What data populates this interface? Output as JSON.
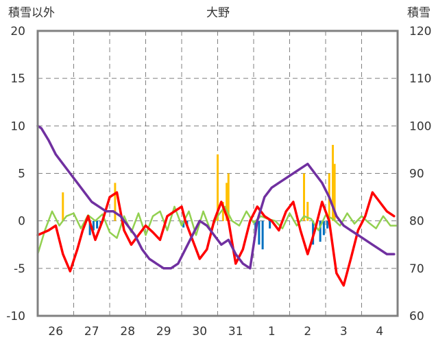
{
  "chart_data": {
    "type": "line",
    "title": "大野",
    "left_axis_label": "積雪以外",
    "right_axis_label": "積雪",
    "ylim_left": [
      -10,
      20
    ],
    "ylim_right": [
      60,
      120
    ],
    "yticks_left": [
      "-10",
      "-5",
      "0",
      "5",
      "10",
      "15",
      "20"
    ],
    "yticks_right": [
      "60",
      "70",
      "80",
      "90",
      "100",
      "110",
      "120"
    ],
    "x_range": [
      0,
      10
    ],
    "categories": [
      "26",
      "27",
      "28",
      "29",
      "30",
      "31",
      "1",
      "2",
      "3",
      "4"
    ],
    "grid": true,
    "colors": {
      "temperature": "#ff0000",
      "snow_depth": "#7030a0",
      "wind": "#92d050",
      "precip_pos": "#ffc000",
      "precip_neg": "#0070c0",
      "frame": "#808080"
    },
    "series": [
      {
        "axis": "left",
        "color": "#ff0000",
        "x": [
          0,
          0.3,
          0.5,
          0.7,
          0.9,
          1.1,
          1.25,
          1.4,
          1.6,
          1.8,
          2.0,
          2.2,
          2.4,
          2.6,
          2.8,
          3.0,
          3.2,
          3.4,
          3.6,
          3.8,
          4.0,
          4.1,
          4.3,
          4.5,
          4.7,
          4.9,
          5.1,
          5.3,
          5.5,
          5.7,
          5.9,
          6.1,
          6.3,
          6.5,
          6.7,
          6.9,
          7.1,
          7.3,
          7.5,
          7.7,
          7.9,
          8.1,
          8.3,
          8.5,
          8.7,
          8.9,
          9.1,
          9.3,
          9.5,
          9.7,
          9.9
        ],
        "y": [
          -1.5,
          -1,
          -0.5,
          -3.5,
          -5.3,
          -3,
          -1,
          0.5,
          -2,
          0,
          2.5,
          3,
          -1,
          -2.5,
          -1.5,
          -0.5,
          -1.2,
          -2,
          0.5,
          1,
          1.5,
          0,
          -2,
          -4,
          -3,
          0,
          2,
          0,
          -4.5,
          -3,
          0,
          1.5,
          0.5,
          0,
          -1,
          1,
          2,
          -1,
          -3.5,
          -1,
          2,
          0,
          -5.5,
          -6.8,
          -4,
          -1,
          0.5,
          3,
          2,
          1,
          0.5
        ]
      },
      {
        "axis": "right",
        "color": "#7030a0",
        "x": [
          0,
          0.1,
          0.3,
          0.5,
          0.7,
          0.9,
          1.1,
          1.3,
          1.5,
          1.7,
          1.9,
          2.1,
          2.3,
          2.5,
          2.7,
          2.9,
          3.1,
          3.3,
          3.5,
          3.7,
          3.9,
          4.1,
          4.3,
          4.5,
          4.7,
          4.9,
          5.1,
          5.3,
          5.5,
          5.7,
          5.9,
          6.1,
          6.3,
          6.5,
          6.7,
          6.9,
          7.1,
          7.3,
          7.5,
          7.7,
          7.9,
          8.1,
          8.3,
          8.5,
          8.7,
          8.9,
          9.1,
          9.3,
          9.5,
          9.7,
          9.9
        ],
        "y": [
          100,
          99.5,
          97,
          94,
          92,
          90,
          88,
          86,
          84,
          83,
          82,
          82,
          81,
          79,
          77,
          74,
          72,
          71,
          70,
          70,
          71,
          74,
          77,
          80,
          79,
          77,
          75,
          76,
          73,
          71,
          70,
          80,
          85,
          87,
          88,
          89,
          90,
          91,
          92,
          90,
          88,
          85,
          81,
          79,
          78,
          77,
          76,
          75,
          74,
          73,
          73
        ]
      },
      {
        "axis": "left",
        "color": "#92d050",
        "x": [
          0,
          0.2,
          0.4,
          0.6,
          0.8,
          1.0,
          1.2,
          1.4,
          1.6,
          1.8,
          2.0,
          2.2,
          2.4,
          2.6,
          2.8,
          3.0,
          3.2,
          3.4,
          3.6,
          3.8,
          4.0,
          4.2,
          4.4,
          4.6,
          4.8,
          5.0,
          5.2,
          5.4,
          5.6,
          5.8,
          6.0,
          6.2,
          6.4,
          6.6,
          6.8,
          7.0,
          7.2,
          7.4,
          7.6,
          7.8,
          8.0,
          8.2,
          8.4,
          8.6,
          8.8,
          9.0,
          9.2,
          9.4,
          9.6,
          9.8,
          10.0
        ],
        "y": [
          -3.5,
          -1,
          1,
          -0.5,
          0.5,
          0.8,
          -0.8,
          0.6,
          0,
          0.7,
          -1.2,
          -1.8,
          0.5,
          -1.2,
          0.8,
          -1.5,
          0.5,
          1,
          -1,
          1.5,
          -0.5,
          1,
          -1.5,
          1,
          -1,
          0.5,
          1.5,
          0,
          -0.5,
          1,
          -0.2,
          0.5,
          0.2,
          0,
          -0.8,
          0.8,
          -0.5,
          0.5,
          0.2,
          -1,
          0.6,
          0.2,
          -0.5,
          0.8,
          -0.3,
          0.5,
          -0.2,
          -0.8,
          0.5,
          -0.5,
          -0.5
        ]
      },
      {
        "axis": "left",
        "type": "bar",
        "color": "#ffc000",
        "x": [
          0.7,
          2.15,
          5.0,
          5.15,
          5.25,
          5.3,
          7.4,
          7.5,
          8.1,
          8.2,
          8.25
        ],
        "values": [
          3,
          4,
          7,
          2,
          4,
          5,
          5,
          2,
          5,
          8,
          6
        ]
      },
      {
        "axis": "left",
        "type": "bar",
        "color": "#0070c0",
        "x": [
          1.45,
          1.55,
          1.65,
          1.75,
          4.05,
          4.15,
          6.05,
          6.15,
          6.25,
          6.45,
          7.65,
          7.85,
          7.95,
          8.05
        ],
        "values": [
          -1.5,
          -1,
          -0.8,
          -0.5,
          -0.7,
          -0.5,
          -1.5,
          -2.5,
          -3,
          -0.8,
          -2.5,
          -2.2,
          -1.5,
          -0.8
        ]
      }
    ]
  }
}
